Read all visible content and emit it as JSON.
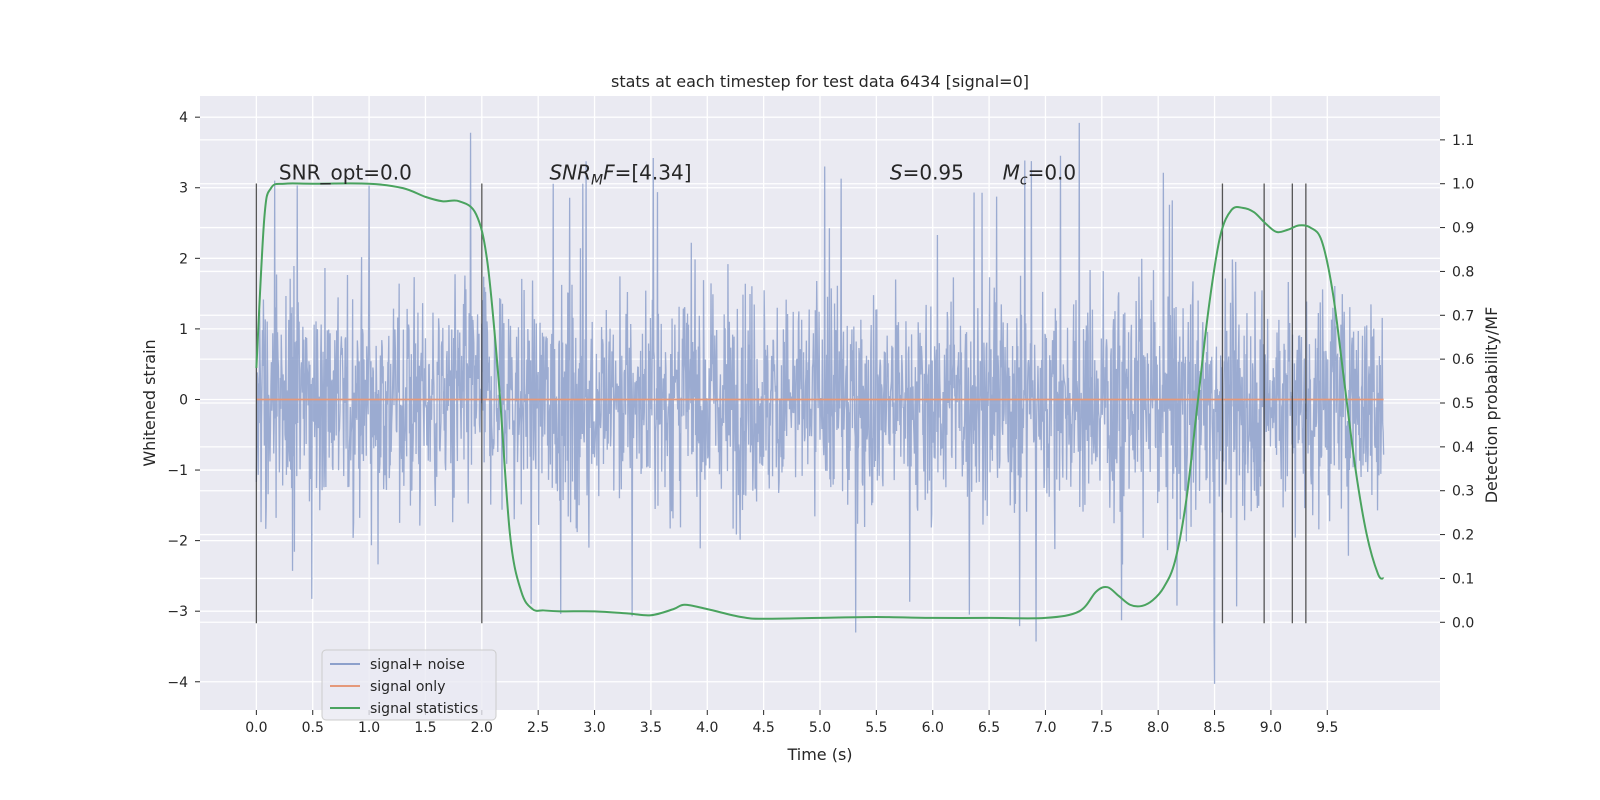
{
  "chart_data": {
    "type": "line",
    "title": "stats at each timestep for test data 6434 [signal=0]",
    "xlabel": "Time (s)",
    "ylabel": "Whitened strain",
    "y2label": "Detection probability/MF",
    "xlim": [
      -0.5,
      10.5
    ],
    "ylim": [
      -4.4,
      4.3
    ],
    "y2lim": [
      -0.2,
      1.2
    ],
    "xticks": [
      0.0,
      0.5,
      1.0,
      1.5,
      2.0,
      2.5,
      3.0,
      3.5,
      4.0,
      4.5,
      5.0,
      5.5,
      6.0,
      6.5,
      7.0,
      7.5,
      8.0,
      8.5,
      9.0,
      9.5
    ],
    "xtick_labels": [
      "0.0",
      "0.5",
      "1.0",
      "1.5",
      "2.0",
      "2.5",
      "3.0",
      "3.5",
      "4.0",
      "4.5",
      "5.0",
      "5.5",
      "6.0",
      "6.5",
      "7.0",
      "7.5",
      "8.0",
      "8.5",
      "9.0",
      "9.5"
    ],
    "yticks": [
      -4,
      -3,
      -2,
      -1,
      0,
      1,
      2,
      3,
      4
    ],
    "ytick_labels": [
      "−4",
      "−3",
      "−2",
      "−1",
      "0",
      "1",
      "2",
      "3",
      "4"
    ],
    "y2ticks": [
      0.0,
      0.1,
      0.2,
      0.3,
      0.4,
      0.5,
      0.6,
      0.7,
      0.8,
      0.9,
      1.0,
      1.1
    ],
    "y2tick_labels": [
      "0.0",
      "0.1",
      "0.2",
      "0.3",
      "0.4",
      "0.5",
      "0.6",
      "0.7",
      "0.8",
      "0.9",
      "1.0",
      "1.1"
    ],
    "grid": true,
    "legend_position": "bottom-left",
    "series": [
      {
        "name": "signal+ noise",
        "color": "#8da0cb",
        "x_range": [
          0.0,
          10.0
        ],
        "y_range": [
          -4.0,
          3.9
        ],
        "y_typical_range": [
          -2.4,
          2.4
        ],
        "peaks": [
          {
            "x": 1.9,
            "y": 3.78
          },
          {
            "x": 7.3,
            "y": 3.92
          },
          {
            "x": 8.5,
            "y": -4.03
          }
        ]
      },
      {
        "name": "signal only",
        "color": "#e5997a",
        "x": [
          0.0,
          10.0
        ],
        "y": [
          0.0,
          0.0
        ]
      },
      {
        "name": "signal statistics",
        "color": "#4aa35f",
        "axis": "right",
        "x": [
          0.0,
          0.07,
          0.13,
          0.25,
          0.5,
          1.0,
          1.3,
          1.5,
          1.65,
          1.8,
          1.95,
          2.05,
          2.15,
          2.25,
          2.35,
          2.45,
          2.55,
          2.7,
          3.0,
          3.3,
          3.5,
          3.7,
          3.8,
          4.0,
          4.3,
          4.5,
          5.0,
          5.5,
          6.0,
          6.5,
          7.0,
          7.3,
          7.45,
          7.55,
          7.65,
          7.75,
          7.85,
          7.95,
          8.05,
          8.15,
          8.25,
          8.35,
          8.45,
          8.55,
          8.65,
          8.75,
          8.85,
          8.95,
          9.05,
          9.15,
          9.25,
          9.35,
          9.45,
          9.55,
          9.65,
          9.75,
          9.85,
          9.95,
          10.0
        ],
        "y": [
          0.58,
          0.92,
          0.99,
          1.0,
          1.0,
          1.0,
          0.99,
          0.97,
          0.96,
          0.96,
          0.93,
          0.82,
          0.55,
          0.2,
          0.07,
          0.03,
          0.027,
          0.025,
          0.025,
          0.02,
          0.016,
          0.03,
          0.04,
          0.03,
          0.012,
          0.008,
          0.01,
          0.012,
          0.01,
          0.01,
          0.01,
          0.025,
          0.07,
          0.08,
          0.06,
          0.04,
          0.037,
          0.05,
          0.08,
          0.14,
          0.28,
          0.5,
          0.72,
          0.88,
          0.94,
          0.945,
          0.935,
          0.91,
          0.89,
          0.895,
          0.905,
          0.9,
          0.87,
          0.75,
          0.55,
          0.35,
          0.2,
          0.11,
          0.1
        ]
      }
    ],
    "vlines": [
      {
        "x": 0.0,
        "ymin": -3.17,
        "ymax": 3.06
      },
      {
        "x": 2.0,
        "ymin": -3.17,
        "ymax": 3.06
      },
      {
        "x": 8.57,
        "ymin": -3.17,
        "ymax": 3.06
      },
      {
        "x": 8.94,
        "ymin": -3.17,
        "ymax": 3.06
      },
      {
        "x": 9.19,
        "ymin": -3.17,
        "ymax": 3.06
      },
      {
        "x": 9.31,
        "ymin": -3.17,
        "ymax": 3.06
      }
    ],
    "annotations": [
      {
        "kind": "plain",
        "text": "SNR_opt=0.0",
        "x": 0.2,
        "y": 3.12
      },
      {
        "kind": "mathsub",
        "main": "SNR",
        "sub": "M",
        "rest": "F",
        "value": "=[4.34]",
        "x": 2.6,
        "y": 3.12
      },
      {
        "kind": "math",
        "main": "S",
        "value": "=0.95",
        "x": 5.62,
        "y": 3.12
      },
      {
        "kind": "mathsub",
        "main": "M",
        "sub": "c",
        "rest": "",
        "value": "=0.0",
        "x": 6.62,
        "y": 3.12
      }
    ]
  }
}
